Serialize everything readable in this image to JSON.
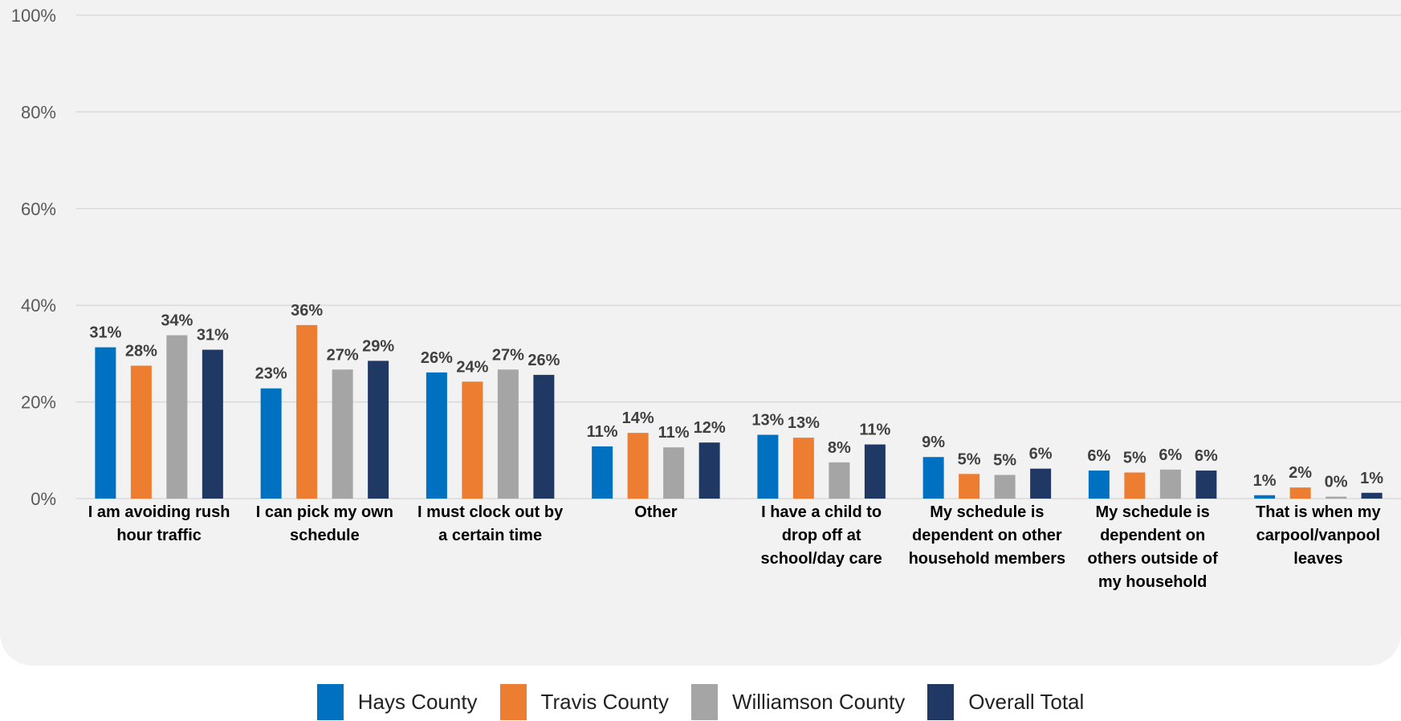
{
  "chart_data": {
    "type": "bar",
    "categories": [
      "I am avoiding rush hour traffic",
      "I can pick my own schedule",
      "I must clock out by a certain time",
      "Other",
      "I have a child to drop off at school/day care",
      "My schedule is dependent on other household members",
      "My schedule is dependent on others outside of my household",
      "That is when my carpool/vanpool leaves"
    ],
    "series": [
      {
        "name": "Hays County",
        "color": "#0070c0",
        "values": [
          31.3,
          22.8,
          26.1,
          10.8,
          13.2,
          8.6,
          5.8,
          0.7
        ],
        "value_labels": [
          "31%",
          "23%",
          "26%",
          "11%",
          "13%",
          "9%",
          "6%",
          "1%"
        ]
      },
      {
        "name": "Travis County",
        "color": "#ed7d31",
        "values": [
          27.5,
          35.9,
          24.2,
          13.6,
          12.6,
          5.1,
          5.4,
          2.3
        ],
        "value_labels": [
          "28%",
          "36%",
          "24%",
          "14%",
          "13%",
          "5%",
          "5%",
          "2%"
        ]
      },
      {
        "name": "Williamson County",
        "color": "#a5a5a5",
        "values": [
          33.8,
          26.7,
          26.7,
          10.6,
          7.5,
          4.9,
          6.0,
          0.4
        ],
        "value_labels": [
          "34%",
          "27%",
          "27%",
          "11%",
          "8%",
          "5%",
          "6%",
          "0%"
        ]
      },
      {
        "name": "Overall Total",
        "color": "#203864",
        "values": [
          30.8,
          28.5,
          25.6,
          11.6,
          11.2,
          6.2,
          5.8,
          1.2
        ],
        "value_labels": [
          "31%",
          "29%",
          "26%",
          "12%",
          "11%",
          "6%",
          "6%",
          "1%"
        ]
      }
    ],
    "ylim": [
      0,
      100
    ],
    "yticks": [
      {
        "value": 0,
        "label": "0%"
      },
      {
        "value": 20,
        "label": "20%"
      },
      {
        "value": 40,
        "label": "40%"
      },
      {
        "value": 60,
        "label": "60%"
      },
      {
        "value": 80,
        "label": "80%"
      },
      {
        "value": 100,
        "label": "100%"
      }
    ],
    "grid": true,
    "legend": "bottom"
  }
}
